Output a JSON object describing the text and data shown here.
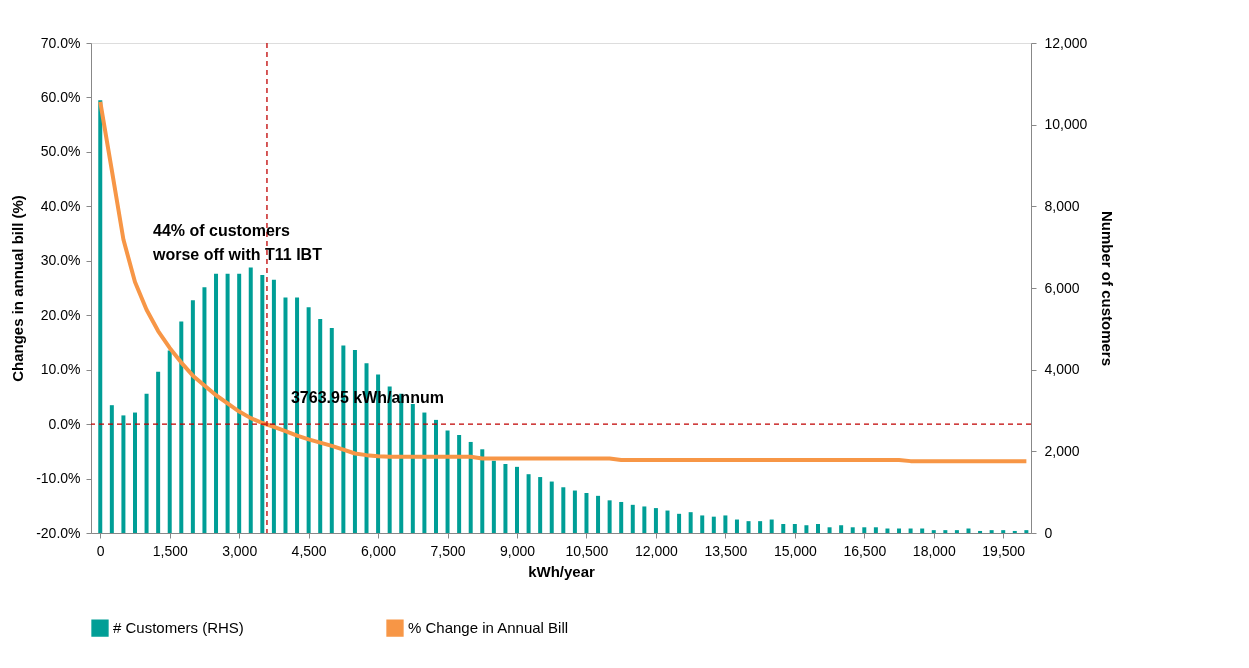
{
  "chart_data": {
    "type": "bar",
    "xlabel": "kWh/year",
    "ylabel": "Changes in annual bill (%)",
    "y2label": "Number of customers",
    "x": [
      0,
      250,
      500,
      750,
      1000,
      1250,
      1500,
      1750,
      2000,
      2250,
      2500,
      2750,
      3000,
      3250,
      3500,
      3750,
      4000,
      4250,
      4500,
      4750,
      5000,
      5250,
      5500,
      5750,
      6000,
      6250,
      6500,
      6750,
      7000,
      7250,
      7500,
      7750,
      8000,
      8250,
      8500,
      8750,
      9000,
      9250,
      9500,
      9750,
      10000,
      10250,
      10500,
      10750,
      11000,
      11250,
      11500,
      11750,
      12000,
      12250,
      12500,
      12750,
      13000,
      13250,
      13500,
      13750,
      14000,
      14250,
      14500,
      14750,
      15000,
      15250,
      15500,
      15750,
      16000,
      16250,
      16500,
      16750,
      17000,
      17250,
      17500,
      17750,
      18000,
      18250,
      18500,
      18750,
      19000,
      19250,
      19500,
      19750,
      20000
    ],
    "series": [
      {
        "name": "# Customers (RHS)",
        "axis": "y2",
        "color": "#009e96",
        "values": [
          10600,
          3130,
          2880,
          2950,
          3410,
          3950,
          4470,
          5180,
          5700,
          6020,
          6350,
          6350,
          6350,
          6500,
          6320,
          6200,
          5770,
          5770,
          5530,
          5240,
          5020,
          4590,
          4480,
          4160,
          3880,
          3590,
          3410,
          3160,
          2950,
          2770,
          2510,
          2400,
          2230,
          2050,
          1770,
          1690,
          1620,
          1440,
          1370,
          1260,
          1120,
          1040,
          980,
          910,
          800,
          760,
          690,
          650,
          610,
          550,
          470,
          510,
          430,
          400,
          430,
          330,
          290,
          290,
          330,
          220,
          220,
          190,
          220,
          140,
          190,
          140,
          140,
          140,
          110,
          110,
          110,
          110,
          70,
          70,
          70,
          110,
          50,
          70,
          70,
          50,
          70
        ]
      },
      {
        "name": "% Change in Annual Bill",
        "type": "line",
        "color": "#f79646",
        "values": [
          59.2,
          46.6,
          33.9,
          26.1,
          21.0,
          17.1,
          14.0,
          11.3,
          8.9,
          7.1,
          5.3,
          3.8,
          2.3,
          1.1,
          0.2,
          -0.5,
          -1.3,
          -2.1,
          -2.8,
          -3.4,
          -4.0,
          -4.7,
          -5.4,
          -5.7,
          -5.9,
          -6.0,
          -6.0,
          -6.0,
          -6.0,
          -6.0,
          -6.0,
          -6.0,
          -6.0,
          -6.3,
          -6.3,
          -6.3,
          -6.3,
          -6.3,
          -6.3,
          -6.3,
          -6.3,
          -6.3,
          -6.3,
          -6.3,
          -6.3,
          -6.6,
          -6.6,
          -6.6,
          -6.6,
          -6.6,
          -6.6,
          -6.6,
          -6.6,
          -6.6,
          -6.6,
          -6.6,
          -6.6,
          -6.6,
          -6.6,
          -6.6,
          -6.6,
          -6.6,
          -6.6,
          -6.6,
          -6.6,
          -6.6,
          -6.6,
          -6.6,
          -6.6,
          -6.6,
          -6.8,
          -6.8,
          -6.8,
          -6.8,
          -6.8,
          -6.8,
          -6.8,
          -6.8,
          -6.8,
          -6.8,
          -6.8
        ]
      }
    ],
    "xlim": [
      -200,
      20100
    ],
    "xticks": [
      0,
      {
        "value": 1500,
        "label": "1,500"
      },
      {
        "value": 3000,
        "label": "3,000"
      },
      {
        "value": 4500,
        "label": "4,500"
      },
      {
        "value": 6000,
        "label": "6,000"
      },
      {
        "value": 7500,
        "label": "7,500"
      },
      {
        "value": 9000,
        "label": "9,000"
      },
      {
        "value": 10500,
        "label": "10,500"
      },
      {
        "value": 12000,
        "label": "12,000"
      },
      {
        "value": 13500,
        "label": "13,500"
      },
      {
        "value": 15000,
        "label": "15,000"
      },
      {
        "value": 16500,
        "label": "16,500"
      },
      {
        "value": 18000,
        "label": "18,000"
      },
      {
        "value": 19500,
        "label": "19,500"
      }
    ],
    "ylim": [
      -20,
      70
    ],
    "yticks": [
      {
        "value": -20,
        "label": "-20.0%"
      },
      {
        "value": -10,
        "label": "-10.0%"
      },
      {
        "value": 0,
        "label": "0.0%"
      },
      {
        "value": 10,
        "label": "10.0%"
      },
      {
        "value": 20,
        "label": "20.0%"
      },
      {
        "value": 30,
        "label": "30.0%"
      },
      {
        "value": 40,
        "label": "40.0%"
      },
      {
        "value": 50,
        "label": "50.0%"
      },
      {
        "value": 60,
        "label": "60.0%"
      },
      {
        "value": 70,
        "label": "70.0%"
      }
    ],
    "y2lim": [
      0,
      12000
    ],
    "y2ticks": [
      0,
      {
        "value": 2000,
        "label": "2,000"
      },
      {
        "value": 4000,
        "label": "4,000"
      },
      {
        "value": 6000,
        "label": "6,000"
      },
      {
        "value": 8000,
        "label": "8,000"
      },
      {
        "value": 10000,
        "label": "10,000"
      },
      {
        "value": 12000,
        "label": "12,000"
      }
    ],
    "ref_lines": [
      {
        "axis": "x",
        "value": 3600,
        "label": "3763.95 kWh/annum",
        "color": "#c00000",
        "line_style": "dashed"
      },
      {
        "axis": "y",
        "value": 0,
        "color": "#c00000",
        "line_style": "dashed"
      }
    ],
    "annotations": [
      "44% of customers worse off with T11 IBT"
    ],
    "legend": "bottom",
    "grid": false,
    "marker": "none",
    "line_style": "solid"
  }
}
